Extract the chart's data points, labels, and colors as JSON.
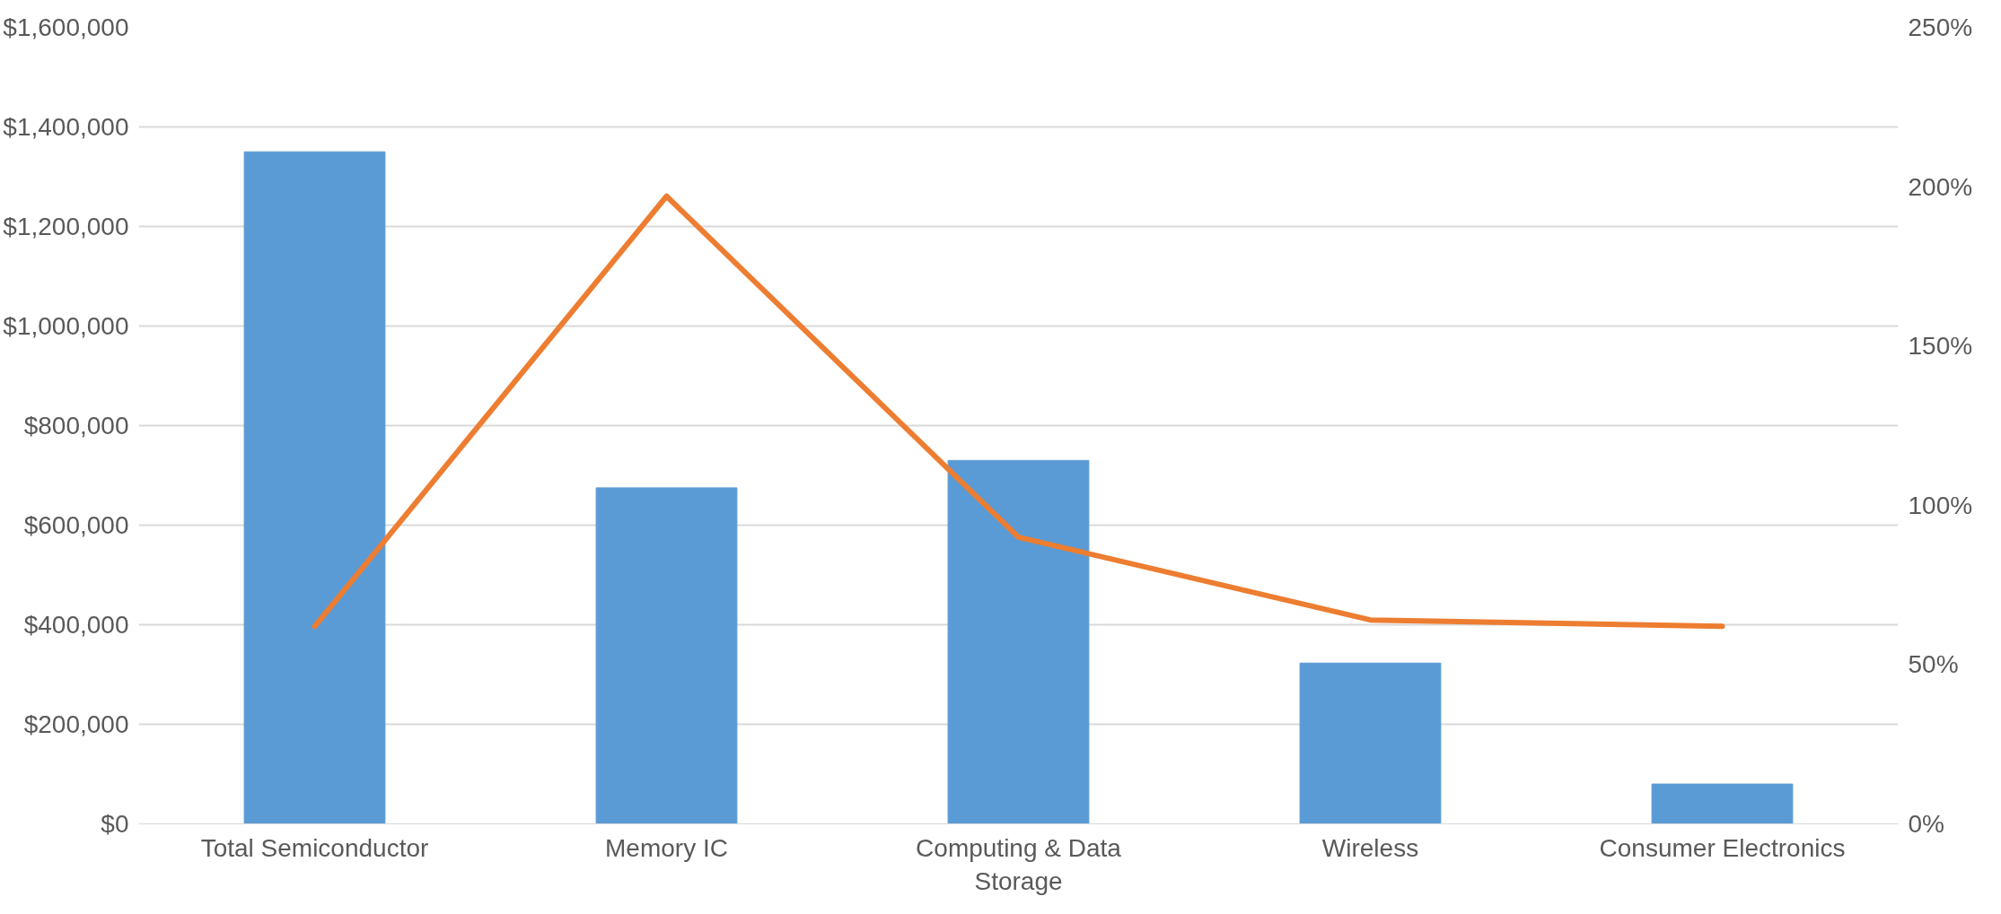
{
  "chart_data": {
    "type": "bar",
    "categories": [
      "Total Semiconductor",
      "Memory IC",
      "Computing & Data Storage",
      "Wireless",
      "Consumer Electronics"
    ],
    "series": [
      {
        "color": "#5b9bd5",
        "values": [
          1350000,
          675000,
          730000,
          323000,
          80000
        ]
      },
      {
        "type": "line",
        "axis": "y2",
        "color": "#ed7d31",
        "values": [
          62,
          197,
          90,
          64,
          62
        ]
      }
    ],
    "ylim": [
      0,
      1600000
    ],
    "yticks": [
      {
        "value": 0,
        "label": "$0"
      },
      {
        "value": 200000,
        "label": "$200,000"
      },
      {
        "value": 400000,
        "label": "$400,000"
      },
      {
        "value": 600000,
        "label": "$600,000"
      },
      {
        "value": 800000,
        "label": "$800,000"
      },
      {
        "value": 1000000,
        "label": "$1,000,000"
      },
      {
        "value": 1200000,
        "label": "$1,200,000"
      },
      {
        "value": 1400000,
        "label": "$1,400,000"
      },
      {
        "value": 1600000,
        "label": "$1,600,000"
      }
    ],
    "y2lim": [
      0,
      250
    ],
    "y2ticks": [
      {
        "value": 0,
        "label": "0%"
      },
      {
        "value": 50,
        "label": "50%"
      },
      {
        "value": 100,
        "label": "100%"
      },
      {
        "value": 150,
        "label": "150%"
      },
      {
        "value": 200,
        "label": "200%"
      },
      {
        "value": 250,
        "label": "250%"
      }
    ],
    "grid": "y",
    "marker": "none",
    "line_style": "solid"
  }
}
